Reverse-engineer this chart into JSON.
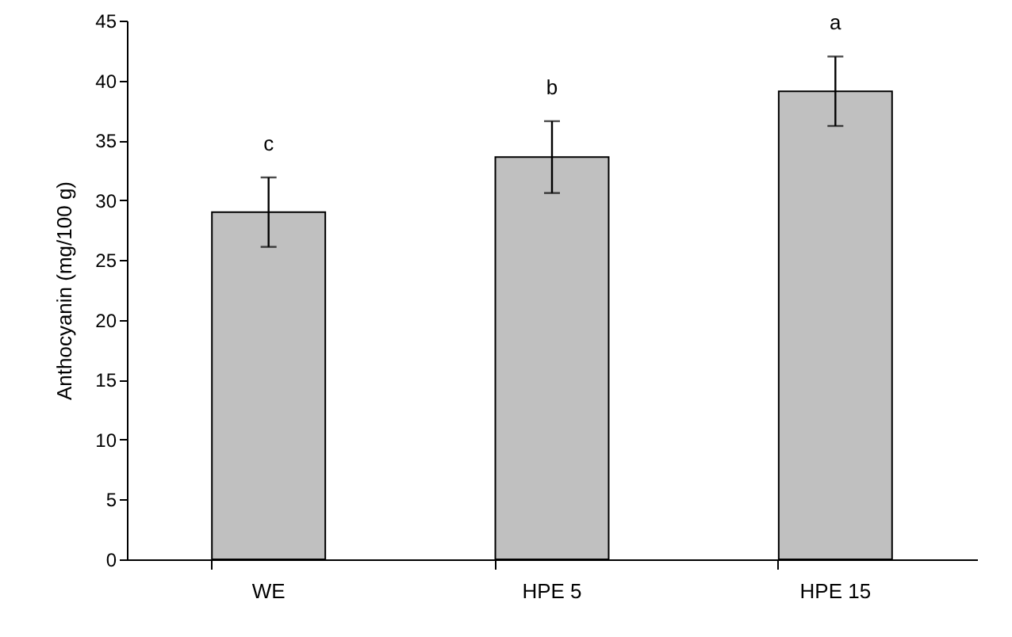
{
  "chart_data": {
    "type": "bar",
    "ylabel": "Anthocyanin (mg/100 g)",
    "categories": [
      "WE",
      "HPE 5",
      "HPE 15"
    ],
    "values": [
      29.0,
      33.6,
      39.1
    ],
    "errors": [
      2.9,
      3.0,
      2.9
    ],
    "color": "#c0c0c0",
    "ylim": [
      0,
      45
    ],
    "yticks": [
      0,
      5,
      10,
      15,
      20,
      25,
      30,
      35,
      40,
      45
    ],
    "annotations": [
      "c",
      "b",
      "a"
    ]
  }
}
